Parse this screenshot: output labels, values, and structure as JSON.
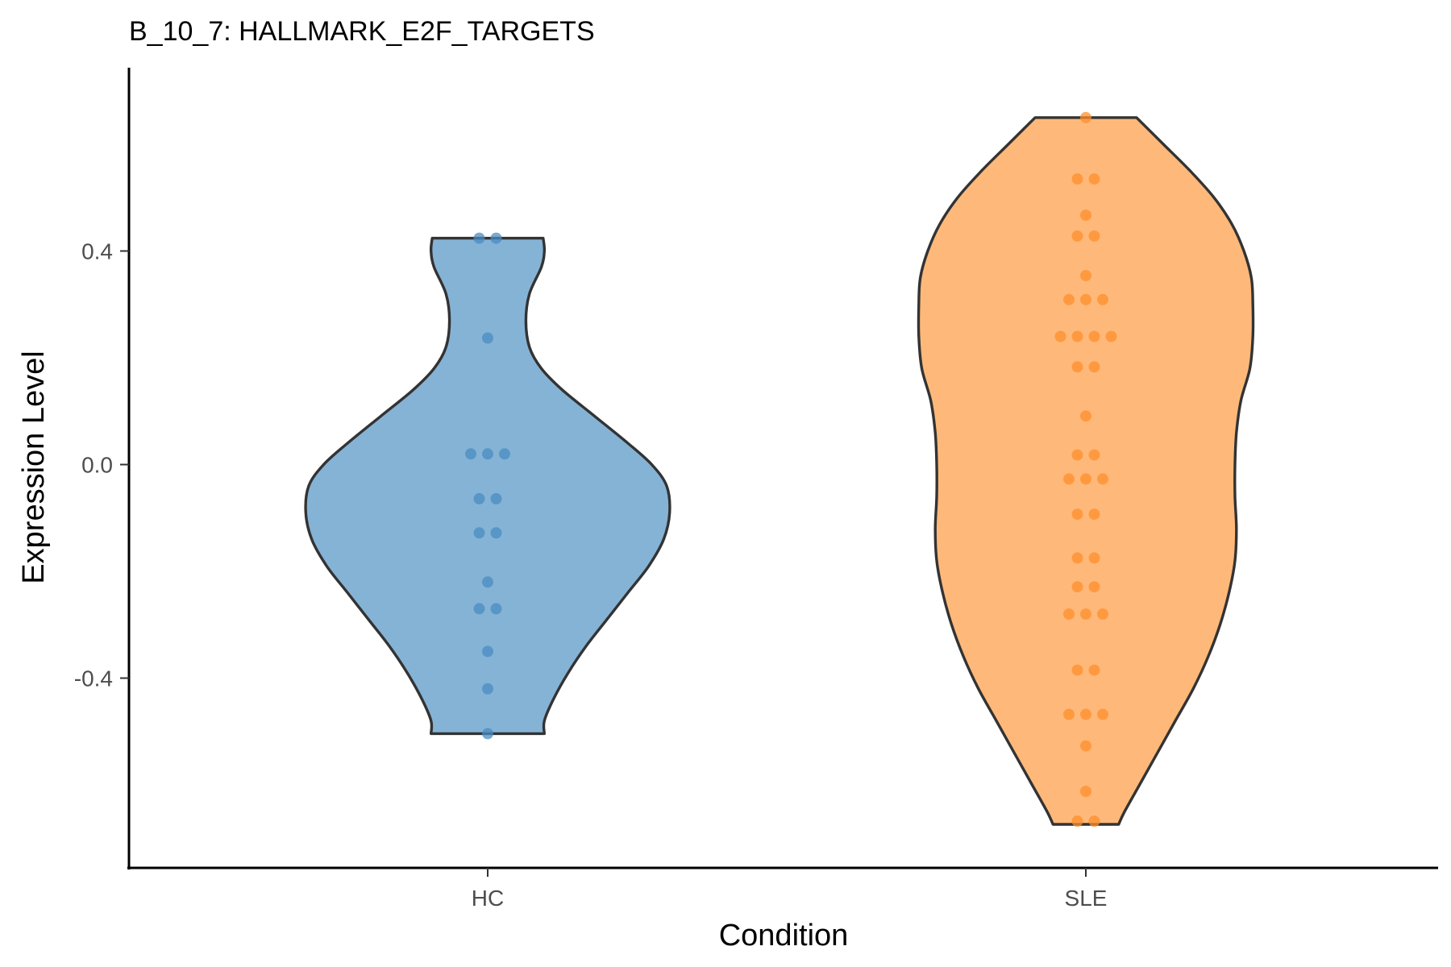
{
  "chart_data": {
    "type": "violin",
    "title": "B_10_7: HALLMARK_E2F_TARGETS",
    "xlabel": "Condition",
    "ylabel": "Expression Level",
    "ylim": [
      -0.75,
      0.74
    ],
    "yticks": [
      0.4,
      0.0,
      -0.4
    ],
    "ytick_labels": [
      "0.4",
      "0.0",
      "-0.4"
    ],
    "grid": false,
    "legend": "none",
    "categories": [
      "HC",
      "SLE"
    ],
    "series": [
      {
        "name": "HC",
        "fill": "#85b3d6",
        "point_color": "#4a8cc2",
        "min": -0.504,
        "max": 0.424,
        "violin_profile": [
          [
            0.424,
            0.186
          ],
          [
            0.4,
            0.19
          ],
          [
            0.37,
            0.18
          ],
          [
            0.32,
            0.14
          ],
          [
            0.27,
            0.128
          ],
          [
            0.22,
            0.14
          ],
          [
            0.18,
            0.18
          ],
          [
            0.14,
            0.25
          ],
          [
            0.09,
            0.36
          ],
          [
            0.04,
            0.47
          ],
          [
            0.0,
            0.55
          ],
          [
            -0.04,
            0.6
          ],
          [
            -0.09,
            0.61
          ],
          [
            -0.14,
            0.59
          ],
          [
            -0.19,
            0.54
          ],
          [
            -0.24,
            0.47
          ],
          [
            -0.29,
            0.4
          ],
          [
            -0.34,
            0.33
          ],
          [
            -0.39,
            0.27
          ],
          [
            -0.44,
            0.22
          ],
          [
            -0.48,
            0.19
          ],
          [
            -0.504,
            0.19
          ]
        ],
        "points": [
          [
            0.424,
            2
          ],
          [
            0.237,
            1
          ],
          [
            0.02,
            3
          ],
          [
            -0.064,
            2
          ],
          [
            -0.128,
            2
          ],
          [
            -0.22,
            1
          ],
          [
            -0.27,
            2
          ],
          [
            -0.35,
            1
          ],
          [
            -0.42,
            1
          ],
          [
            -0.504,
            1
          ]
        ]
      },
      {
        "name": "SLE",
        "fill": "#feb97a",
        "point_color": "#ff8f2d",
        "min": -0.674,
        "max": 0.65,
        "violin_profile": [
          [
            0.65,
            0.17
          ],
          [
            0.6,
            0.26
          ],
          [
            0.55,
            0.35
          ],
          [
            0.5,
            0.43
          ],
          [
            0.45,
            0.49
          ],
          [
            0.4,
            0.53
          ],
          [
            0.35,
            0.555
          ],
          [
            0.3,
            0.56
          ],
          [
            0.24,
            0.56
          ],
          [
            0.18,
            0.55
          ],
          [
            0.12,
            0.52
          ],
          [
            0.06,
            0.505
          ],
          [
            0.0,
            0.5
          ],
          [
            -0.06,
            0.5
          ],
          [
            -0.12,
            0.505
          ],
          [
            -0.18,
            0.5
          ],
          [
            -0.24,
            0.48
          ],
          [
            -0.3,
            0.45
          ],
          [
            -0.36,
            0.41
          ],
          [
            -0.42,
            0.36
          ],
          [
            -0.48,
            0.3
          ],
          [
            -0.54,
            0.24
          ],
          [
            -0.6,
            0.18
          ],
          [
            -0.65,
            0.13
          ],
          [
            -0.674,
            0.11
          ]
        ],
        "points": [
          [
            0.65,
            1
          ],
          [
            0.535,
            2
          ],
          [
            0.467,
            1
          ],
          [
            0.428,
            2
          ],
          [
            0.354,
            1
          ],
          [
            0.309,
            3
          ],
          [
            0.24,
            4
          ],
          [
            0.183,
            2
          ],
          [
            0.091,
            1
          ],
          [
            0.018,
            2
          ],
          [
            -0.027,
            3
          ],
          [
            -0.093,
            2
          ],
          [
            -0.175,
            2
          ],
          [
            -0.229,
            2
          ],
          [
            -0.28,
            3
          ],
          [
            -0.385,
            2
          ],
          [
            -0.468,
            3
          ],
          [
            -0.527,
            1
          ],
          [
            -0.612,
            1
          ],
          [
            -0.668,
            2
          ]
        ]
      }
    ]
  }
}
